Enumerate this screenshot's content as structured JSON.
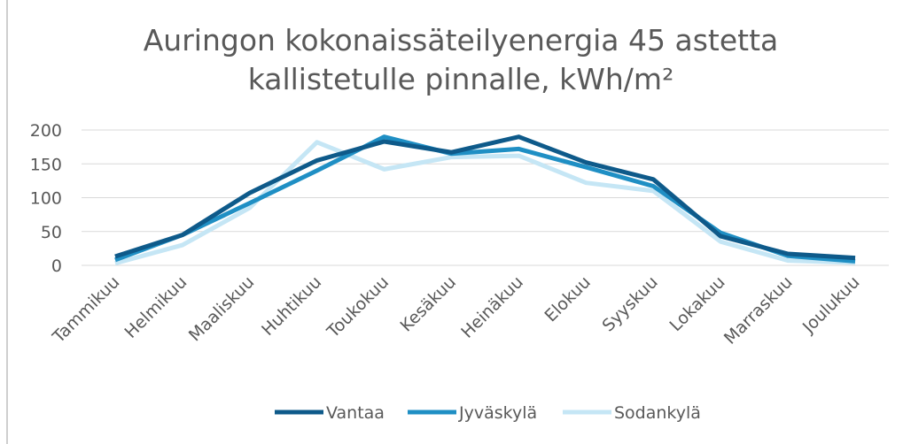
{
  "chart_data": {
    "type": "line",
    "title": "Auringon kokonaissäteilyenergia 45 astetta kallistetulle pinnalle, kWh/m²",
    "categories": [
      "Tammikuu",
      "Helmikuu",
      "Maaliskuu",
      "Huhtikuu",
      "Toukokuu",
      "Kesäkuu",
      "Heinäkuu",
      "Elokuu",
      "Syyskuu",
      "Lokakuu",
      "Marraskuu",
      "Joulukuu"
    ],
    "series": [
      {
        "name": "Vantaa",
        "color": "#0e5a8a",
        "values": [
          13,
          45,
          107,
          155,
          183,
          167,
          190,
          152,
          127,
          43,
          17,
          11
        ]
      },
      {
        "name": "Jyväskylä",
        "color": "#1f8fc4",
        "values": [
          8,
          45,
          92,
          140,
          190,
          165,
          172,
          145,
          117,
          48,
          14,
          6
        ]
      },
      {
        "name": "Sodankylä",
        "color": "#c5e6f5",
        "values": [
          3,
          30,
          85,
          182,
          142,
          160,
          162,
          122,
          110,
          35,
          7,
          4
        ]
      }
    ],
    "ylim": [
      0,
      200
    ],
    "yticks": [
      0,
      50,
      100,
      150,
      200
    ],
    "grid": true,
    "legend": "bottom"
  }
}
